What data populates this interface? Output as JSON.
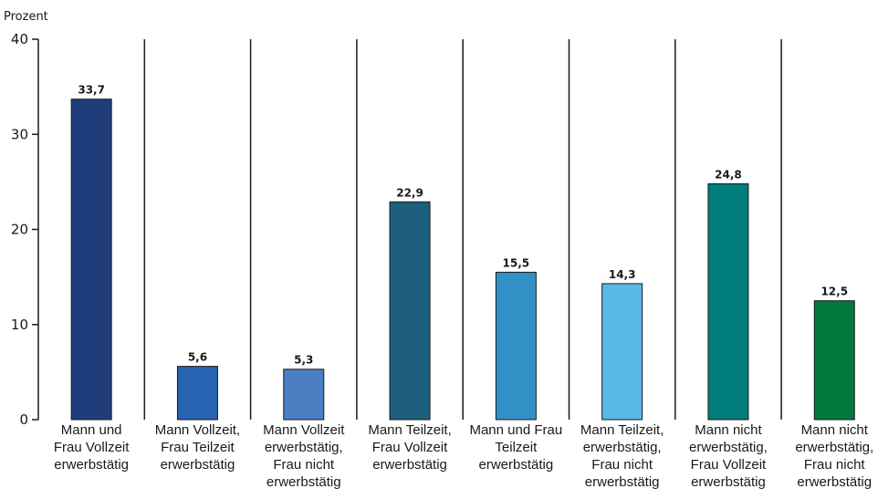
{
  "chart_data": {
    "type": "bar",
    "ylabel": "Prozent",
    "ylim": [
      0,
      40
    ],
    "yticks": [
      0,
      10,
      20,
      30,
      40
    ],
    "grid": false,
    "categories": [
      [
        "Mann und",
        "Frau Vollzeit",
        "erwerbstätig"
      ],
      [
        "Mann Vollzeit,",
        "Frau Teilzeit",
        "erwerbstätig"
      ],
      [
        "Mann Vollzeit",
        "erwerbstätig,",
        "Frau nicht",
        "erwerbstätig"
      ],
      [
        "Mann Teilzeit,",
        "Frau Vollzeit",
        "erwerbstätig"
      ],
      [
        "Mann und Frau",
        "Teilzeit",
        "erwerbstätig"
      ],
      [
        "Mann Teilzeit,",
        "erwerbstätig,",
        "Frau nicht",
        "erwerbstätig"
      ],
      [
        "Mann nicht",
        "erwerbstätig,",
        "Frau Vollzeit",
        "erwerbstätig"
      ],
      [
        "Mann nicht",
        "erwerbstätig,",
        "Frau nicht",
        "erwerbstätig"
      ]
    ],
    "values": [
      33.7,
      5.6,
      5.3,
      22.9,
      15.5,
      14.3,
      24.8,
      12.5
    ],
    "value_labels": [
      "33,7",
      "5,6",
      "5,3",
      "22,9",
      "15,5",
      "14,3",
      "24,8",
      "12,5"
    ],
    "colors": [
      "#1f3d7a",
      "#2663b0",
      "#4a7fc4",
      "#1f5f7e",
      "#3191c6",
      "#58b8e8",
      "#007c7c",
      "#007a3d"
    ]
  }
}
